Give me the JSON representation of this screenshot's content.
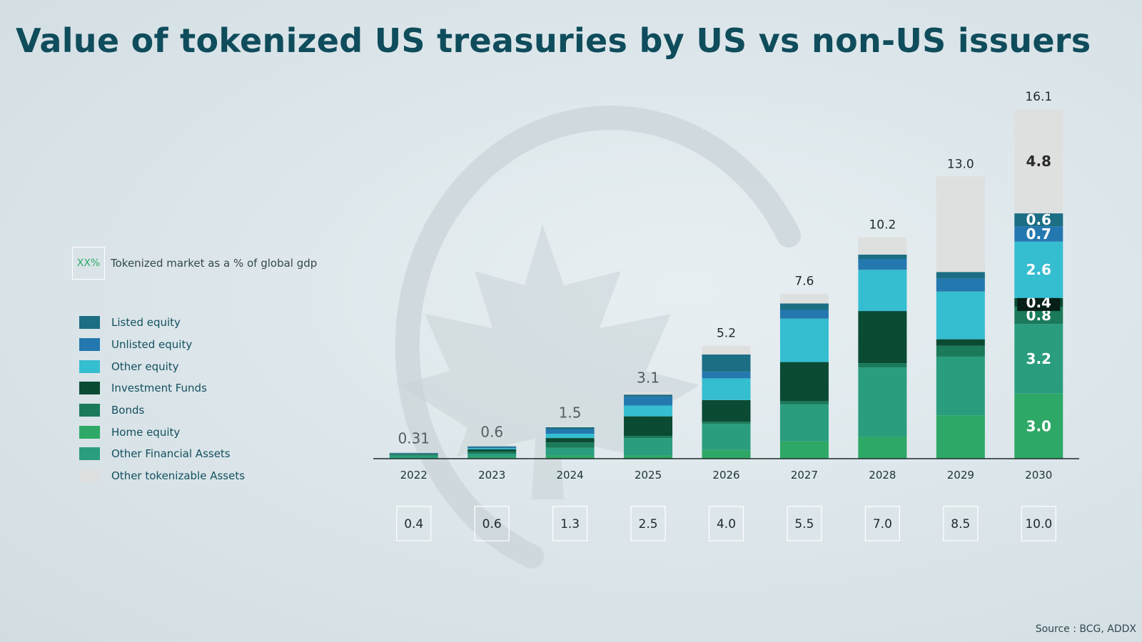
{
  "title": "Value of tokenized US treasuries by US vs non-US issuers",
  "source": "Source : BCG, ADDX",
  "gdp_key": {
    "placeholder": "XX%",
    "label": "Tokenized market as a % of global gdp"
  },
  "colors": {
    "listed_equity": "#1b6e84",
    "unlisted_equity": "#2478b0",
    "other_equity": "#35bdd0",
    "investment_funds": "#0b4a33",
    "bonds": "#1a7a5a",
    "home_equity": "#2ea866",
    "other_financial_assets": "#2a9d7e",
    "other_tokenizable_assets": "#dedfdf",
    "gdp_box_text": "#2ea866",
    "title": "#0f4c5c"
  },
  "legend": [
    {
      "name": "Listed equity",
      "color": "#1b6e84"
    },
    {
      "name": "Unlisted equity",
      "color": "#2478b0"
    },
    {
      "name": "Other equity",
      "color": "#35bdd0"
    },
    {
      "name": "Investment Funds",
      "color": "#0b4a33"
    },
    {
      "name": "Bonds",
      "color": "#1a7a5a"
    },
    {
      "name": "Home equity",
      "color": "#2ea866"
    },
    {
      "name": "Other Financial Assets",
      "color": "#2a9d7e"
    },
    {
      "name": "Other tokenizable Assets",
      "color": "#dedfdf"
    }
  ],
  "chart_data": {
    "type": "bar",
    "stacked": true,
    "categories": [
      "2022",
      "2023",
      "2024",
      "2025",
      "2026",
      "2027",
      "2028",
      "2029",
      "2030"
    ],
    "totals": [
      "0.31",
      "0.6",
      "1.5",
      "3.1",
      "5.2",
      "7.6",
      "10.2",
      "13.0",
      "16.1"
    ],
    "gdp_percent": [
      "0.4",
      "0.6",
      "1.3",
      "2.5",
      "4.0",
      "5.5",
      "7.0",
      "8.5",
      "10.0"
    ],
    "ylim": [
      0,
      16.1
    ],
    "series": [
      {
        "name": "Home equity",
        "color": "#2ea866",
        "values": [
          0.05,
          0.08,
          0.15,
          0.15,
          0.4,
          0.8,
          1.0,
          2.0,
          3.0
        ],
        "labels": [
          "",
          "",
          "",
          "",
          "",
          "",
          "",
          "",
          "3.0"
        ]
      },
      {
        "name": "Other Financial Assets",
        "color": "#2a9d7e",
        "values": [
          0.1,
          0.15,
          0.35,
          0.8,
          1.2,
          1.7,
          3.2,
          2.7,
          3.2
        ],
        "labels": [
          "",
          "",
          "",
          "",
          "",
          "",
          "",
          "",
          "3.2"
        ]
      },
      {
        "name": "Bonds",
        "color": "#1a7a5a",
        "values": [
          0.04,
          0.1,
          0.25,
          0.1,
          0.1,
          0.15,
          0.2,
          0.5,
          0.8
        ],
        "labels": [
          "",
          "",
          "",
          "",
          "",
          "",
          "",
          "",
          "0.8"
        ]
      },
      {
        "name": "Investment Funds",
        "color": "#0b4a33",
        "values": [
          0.03,
          0.1,
          0.2,
          0.9,
          1.0,
          1.8,
          2.4,
          0.3,
          0.4
        ],
        "labels": [
          "",
          "",
          "",
          "",
          "",
          "",
          "",
          "",
          "0.4"
        ]
      },
      {
        "name": "Other equity",
        "color": "#35bdd0",
        "values": [
          0.01,
          0.05,
          0.2,
          0.5,
          1.0,
          2.0,
          1.9,
          2.2,
          2.6
        ],
        "labels": [
          "",
          "",
          "",
          "",
          "",
          "",
          "",
          "",
          "2.6"
        ]
      },
      {
        "name": "Unlisted equity",
        "color": "#2478b0",
        "values": [
          0.02,
          0.05,
          0.2,
          0.4,
          0.3,
          0.4,
          0.5,
          0.6,
          0.7
        ],
        "labels": [
          "",
          "",
          "",
          "",
          "",
          "",
          "",
          "",
          "0.7"
        ]
      },
      {
        "name": "Listed equity",
        "color": "#1b6e84",
        "values": [
          0.02,
          0.04,
          0.1,
          0.1,
          0.8,
          0.3,
          0.2,
          0.3,
          0.6
        ],
        "labels": [
          "",
          "",
          "",
          "",
          "",
          "",
          "",
          "",
          "0.6"
        ]
      },
      {
        "name": "Other tokenizable Assets",
        "color": "#dedfdf",
        "values": [
          0.04,
          0.03,
          0.05,
          0.15,
          0.4,
          0.45,
          0.8,
          4.4,
          4.8
        ],
        "labels": [
          "",
          "",
          "",
          "",
          "",
          "",
          "",
          "",
          "4.8"
        ]
      }
    ]
  }
}
